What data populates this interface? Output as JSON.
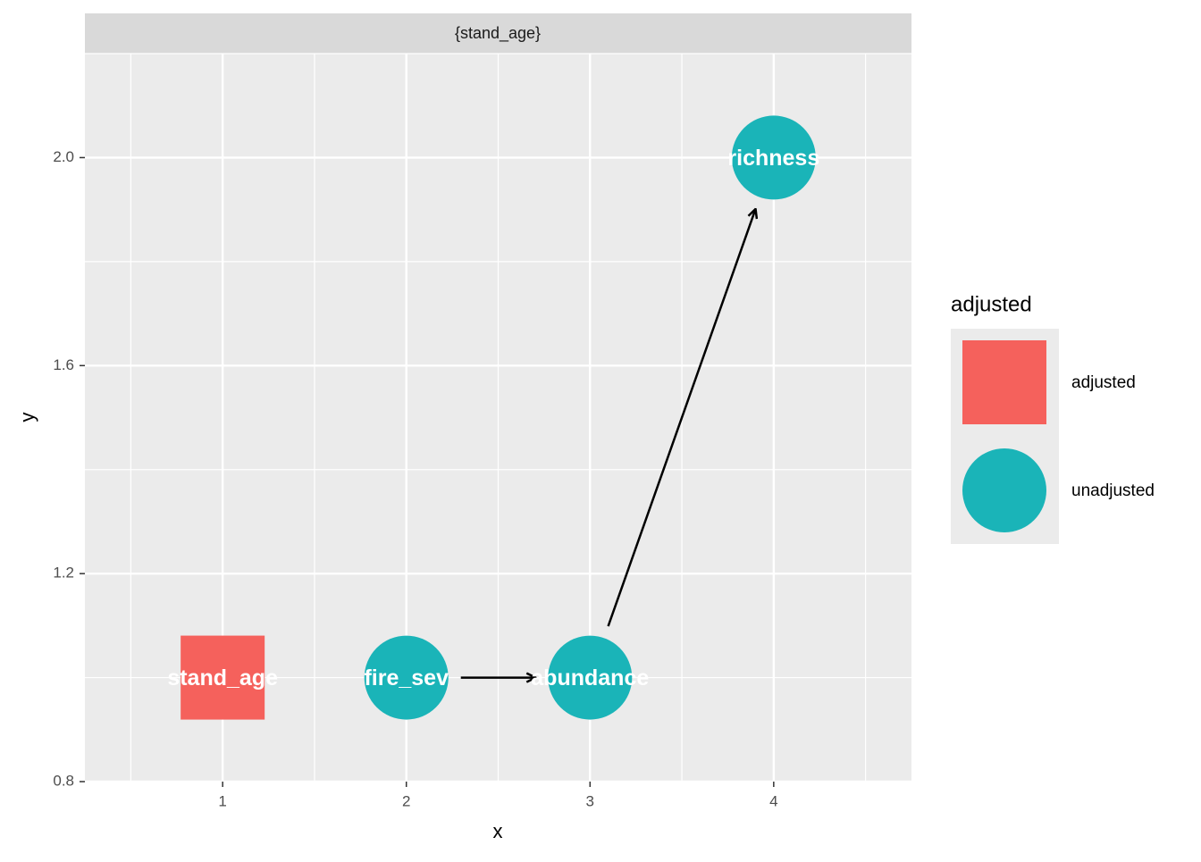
{
  "chart_data": {
    "type": "dag",
    "strip": "{stand_age}",
    "x_label": "x",
    "y_label": "y",
    "xlim": [
      0.25,
      4.75
    ],
    "ylim": [
      0.8,
      2.2
    ],
    "xticks": [
      1,
      2,
      3,
      4
    ],
    "yticks": [
      0.8,
      1.2,
      1.6,
      {
        "value": 2,
        "label": "2.0"
      }
    ],
    "grid": true,
    "legend_title": "adjusted",
    "series": [
      {
        "name": "adjusted",
        "color": "#f5615c",
        "shape": "square",
        "labels": [
          "stand_age"
        ],
        "x": [
          1
        ],
        "values": [
          1
        ]
      },
      {
        "name": "unadjusted",
        "color": "#1ab4b8",
        "shape": "circle",
        "labels": [
          "fire_sev",
          "abundance",
          "richness"
        ],
        "x": [
          2,
          3,
          4
        ],
        "values": [
          1,
          1,
          2
        ]
      }
    ],
    "edges": [
      {
        "from": "fire_sev",
        "to": "abundance"
      },
      {
        "from": "abundance",
        "to": "richness"
      }
    ]
  }
}
